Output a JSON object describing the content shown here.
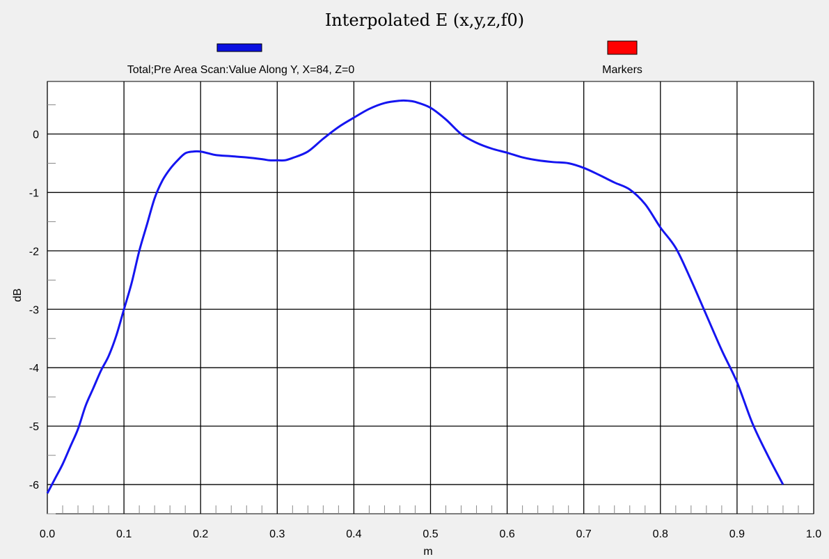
{
  "chart_data": {
    "type": "line",
    "title": "Interpolated  E (x,y,z,f0)",
    "xlabel": "m",
    "ylabel": "dB",
    "xlim": [
      0.0,
      1.0
    ],
    "ylim": [
      -6.5,
      0.9
    ],
    "x_ticks": [
      "0.0",
      "0.1",
      "0.2",
      "0.3",
      "0.4",
      "0.5",
      "0.6",
      "0.7",
      "0.8",
      "0.9",
      "1.0"
    ],
    "y_ticks": [
      "0",
      "-1",
      "-2",
      "-3",
      "-4",
      "-5",
      "-6"
    ],
    "grid": true,
    "legend_position": "top",
    "legend": [
      {
        "label": "Total;Pre Area Scan:Value Along Y, X=84, Z=0",
        "color": "#0a10e0"
      },
      {
        "label": "Markers",
        "color": "#ff0000"
      }
    ],
    "series": [
      {
        "name": "Total;Pre Area Scan:Value Along Y, X=84, Z=0",
        "color": "#1515f0",
        "x": [
          0.0,
          0.01,
          0.02,
          0.03,
          0.04,
          0.05,
          0.06,
          0.07,
          0.08,
          0.09,
          0.1,
          0.11,
          0.12,
          0.13,
          0.14,
          0.15,
          0.16,
          0.17,
          0.18,
          0.19,
          0.2,
          0.21,
          0.22,
          0.24,
          0.26,
          0.28,
          0.29,
          0.3,
          0.31,
          0.32,
          0.34,
          0.36,
          0.38,
          0.4,
          0.42,
          0.44,
          0.46,
          0.47,
          0.48,
          0.5,
          0.52,
          0.54,
          0.56,
          0.58,
          0.6,
          0.62,
          0.64,
          0.66,
          0.68,
          0.7,
          0.72,
          0.74,
          0.76,
          0.78,
          0.8,
          0.82,
          0.84,
          0.86,
          0.88,
          0.9,
          0.92,
          0.94,
          0.96
        ],
        "y": [
          -6.15,
          -5.9,
          -5.65,
          -5.35,
          -5.05,
          -4.65,
          -4.35,
          -4.05,
          -3.8,
          -3.45,
          -3.0,
          -2.55,
          -2.0,
          -1.55,
          -1.1,
          -0.8,
          -0.6,
          -0.45,
          -0.33,
          -0.3,
          -0.3,
          -0.33,
          -0.36,
          -0.38,
          -0.4,
          -0.43,
          -0.45,
          -0.45,
          -0.45,
          -0.41,
          -0.3,
          -0.08,
          0.12,
          0.28,
          0.43,
          0.53,
          0.57,
          0.57,
          0.55,
          0.45,
          0.25,
          0.0,
          -0.15,
          -0.25,
          -0.32,
          -0.4,
          -0.45,
          -0.48,
          -0.5,
          -0.58,
          -0.7,
          -0.83,
          -0.95,
          -1.2,
          -1.6,
          -1.95,
          -2.5,
          -3.1,
          -3.7,
          -4.25,
          -4.95,
          -5.5,
          -6.0
        ]
      }
    ]
  }
}
